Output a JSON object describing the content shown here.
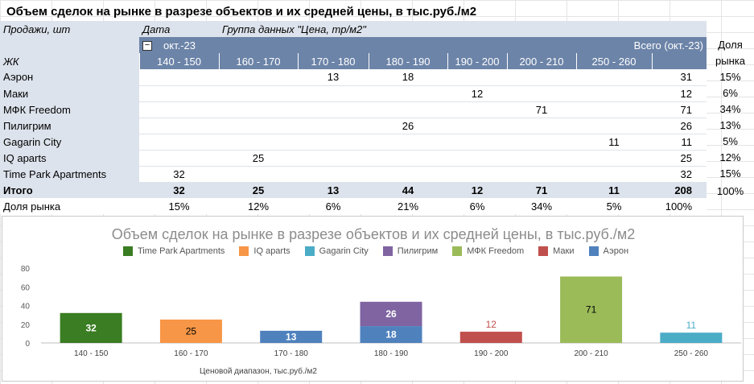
{
  "title": "Объем сделок на рынке в разрезе объектов и их средней цены, в тыс.руб./м2",
  "pivot": {
    "row_field": "Продажи, шт",
    "date_field": "Дата",
    "group_field": "Группа данных \"Цена, тр/м2\"",
    "month": "окт.-23",
    "collapse_symbol": "−",
    "total_header": "Всего (окт.-23)",
    "rows_label": "ЖК",
    "ranges": [
      "140 - 150",
      "160 - 170",
      "170 - 180",
      "180 - 190",
      "190 - 200",
      "200 - 210",
      "250 - 260"
    ],
    "rows": [
      {
        "name": "Аэрон",
        "cells": [
          "",
          "",
          "13",
          "18",
          "",
          "",
          ""
        ],
        "total": "31",
        "share": "15%"
      },
      {
        "name": "Маки",
        "cells": [
          "",
          "",
          "",
          "",
          "12",
          "",
          ""
        ],
        "total": "12",
        "share": "6%"
      },
      {
        "name": "МФК Freedom",
        "cells": [
          "",
          "",
          "",
          "",
          "",
          "71",
          ""
        ],
        "total": "71",
        "share": "34%"
      },
      {
        "name": "Пилигрим",
        "cells": [
          "",
          "",
          "",
          "26",
          "",
          "",
          ""
        ],
        "total": "26",
        "share": "13%"
      },
      {
        "name": "Gagarin City",
        "cells": [
          "",
          "",
          "",
          "",
          "",
          "",
          "11"
        ],
        "total": "11",
        "share": "5%"
      },
      {
        "name": "IQ aparts",
        "cells": [
          "",
          "25",
          "",
          "",
          "",
          "",
          ""
        ],
        "total": "25",
        "share": "12%"
      },
      {
        "name": "Time Park Apartments",
        "cells": [
          "32",
          "",
          "",
          "",
          "",
          "",
          ""
        ],
        "total": "32",
        "share": "15%"
      }
    ],
    "total_row": {
      "name": "Итого",
      "cells": [
        "32",
        "25",
        "13",
        "44",
        "12",
        "71",
        "11"
      ],
      "total": "208",
      "share": "100%"
    },
    "share_row": {
      "name": "Доля рынка",
      "cells": [
        "15%",
        "12%",
        "6%",
        "21%",
        "6%",
        "34%",
        "5%"
      ],
      "total": "100%"
    },
    "share_header": [
      "Доля",
      "рынка"
    ]
  },
  "chart_data": {
    "type": "bar",
    "stacked": true,
    "title": "Объем сделок на рынке в разрезе объектов и их средней цены, в тыс.руб./м2",
    "xlabel": "Ценовой диапазон, тыс.руб./м2",
    "ylabel": "",
    "ylim": [
      0,
      80
    ],
    "yticks": [
      0,
      20,
      40,
      60,
      80
    ],
    "categories": [
      "140 - 150",
      "160 - 170",
      "170 - 180",
      "180 - 190",
      "190 - 200",
      "200 - 210",
      "250 - 260"
    ],
    "legend_position": "top",
    "series": [
      {
        "name": "Time Park Apartments",
        "color": "#3a7d22",
        "label_color": "#ffffff",
        "values": [
          32,
          0,
          0,
          0,
          0,
          0,
          0
        ]
      },
      {
        "name": "IQ aparts",
        "color": "#f79646",
        "label_color": "#000000",
        "values": [
          0,
          25,
          0,
          0,
          0,
          0,
          0
        ]
      },
      {
        "name": "Gagarin City",
        "color": "#4bacc6",
        "label_color": "#4bacc6",
        "values": [
          0,
          0,
          0,
          0,
          0,
          0,
          11
        ]
      },
      {
        "name": "Пилигрим",
        "color": "#8064a2",
        "label_color": "#ffffff",
        "values": [
          0,
          0,
          0,
          26,
          0,
          0,
          0
        ]
      },
      {
        "name": "МФК Freedom",
        "color": "#9bbb59",
        "label_color": "#000000",
        "values": [
          0,
          0,
          0,
          0,
          0,
          71,
          0
        ]
      },
      {
        "name": "Маки",
        "color": "#c0504d",
        "label_color": "#c0504d",
        "values": [
          0,
          0,
          0,
          0,
          12,
          0,
          0
        ]
      },
      {
        "name": "Аэрон",
        "color": "#4f81bd",
        "label_color": "#ffffff",
        "values": [
          0,
          0,
          13,
          18,
          0,
          0,
          0
        ]
      }
    ],
    "stack_order": [
      "Аэрон",
      "Пилигрим",
      "Time Park Apartments",
      "IQ aparts",
      "Маки",
      "МФК Freedom",
      "Gagarin City"
    ]
  }
}
